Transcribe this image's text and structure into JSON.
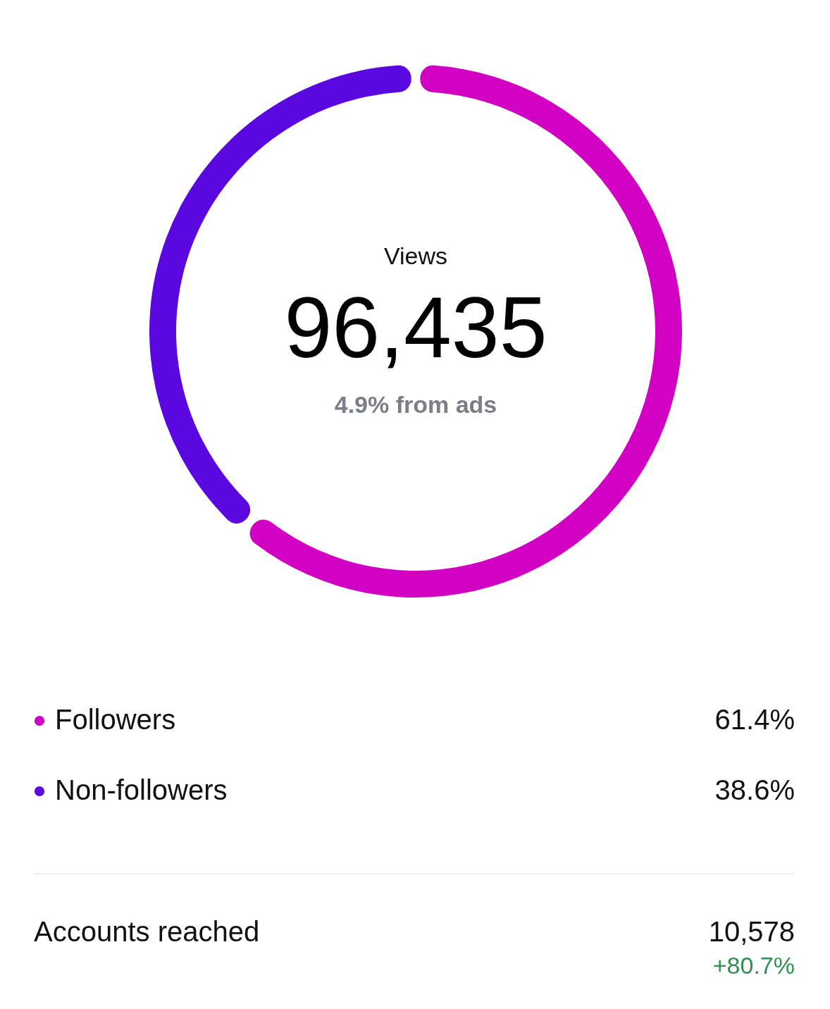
{
  "chart_data": {
    "type": "donut",
    "categories": [
      "Followers",
      "Non-followers"
    ],
    "values": [
      61.4,
      38.6
    ],
    "colors": [
      "#d100c2",
      "#5a08df"
    ],
    "value_labels": [
      "61.4%",
      "38.6%"
    ],
    "legend": "bottom",
    "annotations": [
      "Views",
      "96,435",
      "4.9% from ads",
      "Accounts reached",
      "10,578",
      "+80.7%"
    ]
  }
}
